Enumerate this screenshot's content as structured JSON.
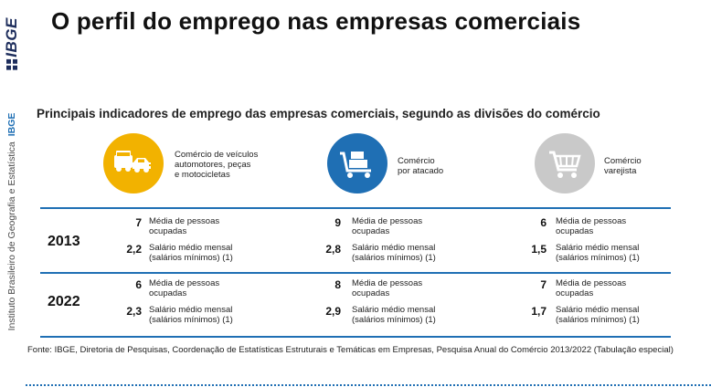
{
  "brand": {
    "logo_text": "IBGE",
    "institute_name": "Instituto Brasileiro de Geografia e Estatística",
    "institute_abbr": "IBGE"
  },
  "title": "O perfil do emprego nas empresas comerciais",
  "subtitle": "Principais indicadores de emprego das empresas comerciais, segundo as divisões do comércio",
  "colors": {
    "vehicles": "#f2b200",
    "wholesale": "#1f6fb4",
    "retail": "#c9c9c9",
    "rule": "#1f6fb4"
  },
  "categories": [
    {
      "label": "Comércio de veículos\nautomotores, peças\ne motocicletas",
      "icon": "vehicles-icon"
    },
    {
      "label": "Comércio\npor atacado",
      "icon": "cart-boxes-icon"
    },
    {
      "label": "Comércio\nvarejista",
      "icon": "shopping-cart-icon"
    }
  ],
  "rows": [
    {
      "year": "2013",
      "cells": [
        {
          "persons_value": "7",
          "persons_label": "Média de pessoas\nocupadas",
          "salary_value": "2,2",
          "salary_label": "Salário médio mensal\n(salários mínimos) (1)"
        },
        {
          "persons_value": "9",
          "persons_label": "Média de pessoas\nocupadas",
          "salary_value": "2,8",
          "salary_label": "Salário médio mensal\n(salários mínimos) (1)"
        },
        {
          "persons_value": "6",
          "persons_label": "Média de pessoas\nocupadas",
          "salary_value": "1,5",
          "salary_label": "Salário médio mensal\n(salários mínimos) (1)"
        }
      ]
    },
    {
      "year": "2022",
      "cells": [
        {
          "persons_value": "6",
          "persons_label": "Média de pessoas\nocupadas",
          "salary_value": "2,3",
          "salary_label": "Salário médio mensal\n(salários mínimos) (1)"
        },
        {
          "persons_value": "8",
          "persons_label": "Média de pessoas\nocupadas",
          "salary_value": "2,9",
          "salary_label": "Salário médio mensal\n(salários mínimos) (1)"
        },
        {
          "persons_value": "7",
          "persons_label": "Média de pessoas\nocupadas",
          "salary_value": "1,7",
          "salary_label": "Salário médio mensal\n(salários mínimos) (1)"
        }
      ]
    }
  ],
  "source": "Fonte: IBGE, Diretoria de Pesquisas, Coordenação de Estatísticas Estruturais e Temáticas em Empresas, Pesquisa Anual do Comércio 2013/2022 (Tabulação especial)"
}
